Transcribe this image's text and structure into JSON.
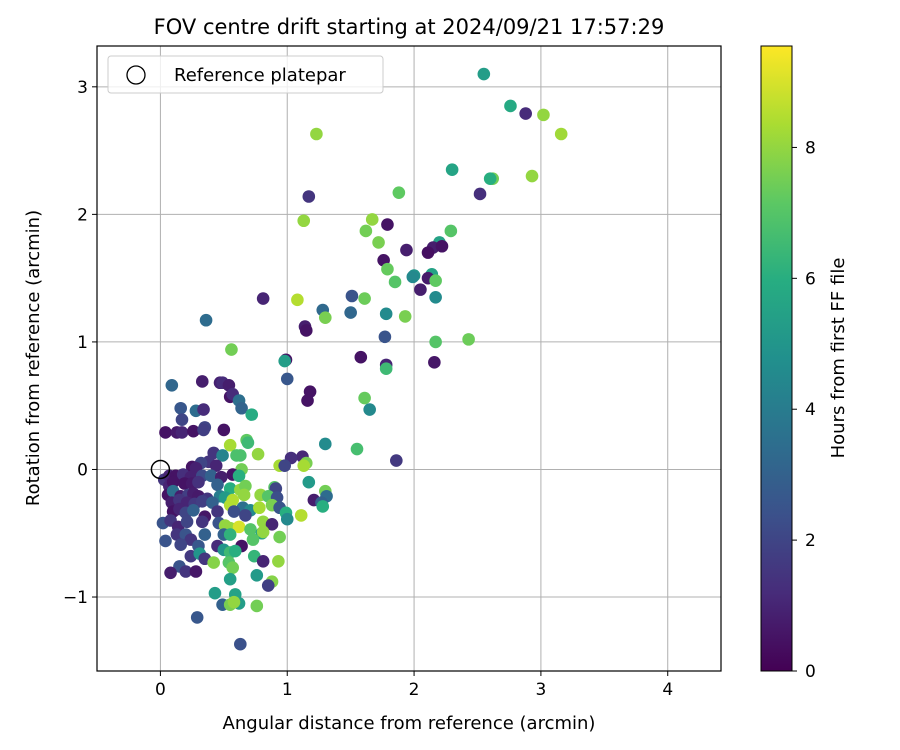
{
  "chart_data": {
    "type": "scatter",
    "title": "FOV centre drift starting at 2024/09/21 17:57:29",
    "xlabel": "Angular distance from reference (arcmin)",
    "ylabel": "Rotation from reference (arcmin)",
    "xlim": [
      -0.5,
      4.42
    ],
    "ylim": [
      -1.58,
      3.32
    ],
    "xticks": [
      0,
      1,
      2,
      3,
      4
    ],
    "yticks": [
      -1,
      0,
      1,
      2,
      3
    ],
    "grid": true,
    "legend": {
      "position": "top-left",
      "entries": [
        "Reference platepar"
      ]
    },
    "reference_point": {
      "x": 0,
      "y": 0
    },
    "colorbar": {
      "label": "Hours from first FF file",
      "ticks": [
        0,
        2,
        4,
        6,
        8
      ],
      "range": [
        0,
        9.55
      ],
      "colormap": "viridis"
    },
    "series": [
      {
        "points": [
          [
            2.55,
            3.1,
            5.3
          ],
          [
            2.76,
            2.85,
            5.8
          ],
          [
            2.88,
            2.79,
            1.2
          ],
          [
            3.02,
            2.78,
            8.0
          ],
          [
            3.16,
            2.63,
            8.2
          ],
          [
            1.23,
            2.63,
            8.0
          ],
          [
            2.3,
            2.35,
            5.6
          ],
          [
            2.62,
            2.28,
            7.5
          ],
          [
            2.6,
            2.28,
            6.0
          ],
          [
            2.93,
            2.3,
            8.0
          ],
          [
            2.52,
            2.16,
            1.3
          ],
          [
            1.17,
            2.14,
            1.5
          ],
          [
            1.88,
            2.17,
            7.2
          ],
          [
            1.13,
            1.95,
            8.0
          ],
          [
            1.67,
            1.96,
            8.0
          ],
          [
            1.79,
            1.92,
            0.5
          ],
          [
            1.62,
            1.87,
            7.5
          ],
          [
            2.29,
            1.87,
            7.0
          ],
          [
            1.72,
            1.78,
            7.6
          ],
          [
            2.2,
            1.78,
            5.5
          ],
          [
            2.15,
            1.74,
            0.8
          ],
          [
            2.22,
            1.75,
            0.5
          ],
          [
            1.94,
            1.72,
            0.8
          ],
          [
            2.11,
            1.7,
            0.4
          ],
          [
            1.76,
            1.64,
            0.5
          ],
          [
            1.79,
            1.57,
            7.3
          ],
          [
            2.0,
            1.52,
            5.0
          ],
          [
            1.99,
            1.51,
            4.5
          ],
          [
            2.14,
            1.53,
            5.5
          ],
          [
            2.11,
            1.5,
            0.7
          ],
          [
            2.17,
            1.48,
            7.2
          ],
          [
            1.85,
            1.47,
            7.0
          ],
          [
            2.05,
            1.41,
            0.8
          ],
          [
            2.17,
            1.35,
            4.6
          ],
          [
            1.61,
            1.34,
            7.4
          ],
          [
            1.08,
            1.33,
            8.5
          ],
          [
            0.81,
            1.34,
            1.0
          ],
          [
            1.51,
            1.36,
            2.5
          ],
          [
            1.28,
            1.25,
            3.3
          ],
          [
            1.5,
            1.23,
            3.2
          ],
          [
            1.78,
            1.22,
            4.6
          ],
          [
            1.3,
            1.19,
            7.6
          ],
          [
            1.93,
            1.2,
            7.6
          ],
          [
            0.36,
            1.17,
            3.4
          ],
          [
            1.14,
            1.12,
            0.8
          ],
          [
            1.15,
            1.09,
            0.5
          ],
          [
            1.77,
            1.04,
            2.5
          ],
          [
            2.17,
            1.0,
            7.0
          ],
          [
            2.43,
            1.02,
            7.4
          ],
          [
            0.56,
            0.94,
            7.5
          ],
          [
            0.99,
            0.86,
            0.5
          ],
          [
            0.98,
            0.85,
            5.3
          ],
          [
            1.58,
            0.88,
            0.5
          ],
          [
            1.78,
            0.82,
            1.0
          ],
          [
            1.78,
            0.79,
            6.5
          ],
          [
            2.16,
            0.84,
            0.6
          ],
          [
            1.0,
            0.71,
            2.6
          ],
          [
            0.09,
            0.66,
            3.2
          ],
          [
            0.33,
            0.69,
            0.8
          ],
          [
            0.47,
            0.68,
            0.9
          ],
          [
            0.49,
            0.68,
            1.2
          ],
          [
            0.54,
            0.66,
            0.8
          ],
          [
            1.18,
            0.61,
            0.5
          ],
          [
            0.55,
            0.57,
            0.5
          ],
          [
            0.57,
            0.59,
            1.2
          ],
          [
            1.16,
            0.54,
            0.5
          ],
          [
            0.62,
            0.54,
            3.5
          ],
          [
            1.61,
            0.56,
            7.3
          ],
          [
            0.64,
            0.48,
            3.1
          ],
          [
            1.65,
            0.47,
            4.5
          ],
          [
            0.16,
            0.48,
            2.6
          ],
          [
            0.28,
            0.46,
            3.4
          ],
          [
            0.34,
            0.47,
            1.2
          ],
          [
            0.72,
            0.43,
            5.9
          ],
          [
            0.17,
            0.39,
            2.0
          ],
          [
            0.04,
            0.29,
            0.5
          ],
          [
            0.13,
            0.29,
            0.7
          ],
          [
            0.17,
            0.29,
            1.0
          ],
          [
            0.26,
            0.3,
            0.5
          ],
          [
            0.35,
            0.33,
            2.0
          ],
          [
            0.34,
            0.31,
            1.8
          ],
          [
            0.5,
            0.31,
            0.5
          ],
          [
            1.3,
            0.2,
            4.6
          ],
          [
            0.55,
            0.19,
            8.3
          ],
          [
            0.68,
            0.23,
            7.2
          ],
          [
            0.69,
            0.21,
            6.5
          ],
          [
            1.55,
            0.16,
            6.7
          ],
          [
            0.63,
            0.11,
            6.8
          ],
          [
            0.77,
            0.12,
            8.0
          ],
          [
            1.12,
            0.1,
            1.1
          ],
          [
            0.42,
            0.13,
            1.5
          ],
          [
            0.6,
            0.11,
            6.8
          ],
          [
            0.49,
            0.11,
            4.3
          ],
          [
            1.03,
            0.09,
            1.3
          ],
          [
            1.15,
            0.05,
            7.6
          ],
          [
            1.13,
            0.03,
            8.3
          ],
          [
            0.94,
            0.03,
            8.3
          ],
          [
            0.98,
            0.03,
            2.0
          ],
          [
            1.86,
            0.07,
            1.6
          ],
          [
            0.38,
            0.06,
            1.5
          ],
          [
            0.32,
            0.05,
            2.0
          ],
          [
            0.64,
            0.0,
            7.5
          ],
          [
            0.25,
            0.02,
            0.5
          ],
          [
            0.28,
            0.01,
            0.9
          ],
          [
            0.44,
            0.03,
            1.0
          ],
          [
            0.57,
            -0.04,
            0.5
          ],
          [
            0.62,
            -0.05,
            6.0
          ],
          [
            0.03,
            -0.08,
            1.5
          ],
          [
            0.07,
            -0.05,
            1.0
          ],
          [
            0.12,
            -0.05,
            0.5
          ],
          [
            0.18,
            -0.04,
            1.3
          ],
          [
            0.24,
            -0.06,
            0.9
          ],
          [
            0.33,
            -0.05,
            2.2
          ],
          [
            0.4,
            -0.05,
            3.0
          ],
          [
            0.48,
            -0.06,
            0.8
          ],
          [
            1.17,
            -0.1,
            5.2
          ],
          [
            0.07,
            -0.13,
            1.0
          ],
          [
            0.1,
            -0.1,
            0.5
          ],
          [
            0.19,
            -0.11,
            0.5
          ],
          [
            0.25,
            -0.11,
            0.7
          ],
          [
            0.3,
            -0.1,
            1.4
          ],
          [
            0.45,
            -0.12,
            3.0
          ],
          [
            0.55,
            -0.15,
            6.0
          ],
          [
            0.63,
            -0.16,
            8.0
          ],
          [
            0.67,
            -0.13,
            7.5
          ],
          [
            0.9,
            -0.14,
            7.0
          ],
          [
            0.91,
            -0.15,
            2.0
          ],
          [
            1.3,
            -0.17,
            7.5
          ],
          [
            1.31,
            -0.21,
            3.4
          ],
          [
            1.21,
            -0.24,
            0.8
          ],
          [
            1.27,
            -0.26,
            3.0
          ],
          [
            0.06,
            -0.2,
            0.5
          ],
          [
            0.1,
            -0.17,
            3.5
          ],
          [
            0.16,
            -0.21,
            0.8
          ],
          [
            0.22,
            -0.2,
            1.8
          ],
          [
            0.26,
            -0.19,
            0.8
          ],
          [
            0.3,
            -0.21,
            0.7
          ],
          [
            0.37,
            -0.23,
            1.5
          ],
          [
            0.47,
            -0.21,
            4.0
          ],
          [
            0.51,
            -0.22,
            5.2
          ],
          [
            0.57,
            -0.24,
            8.5
          ],
          [
            0.66,
            -0.2,
            8.0
          ],
          [
            0.79,
            -0.2,
            8.0
          ],
          [
            0.85,
            -0.21,
            7.0
          ],
          [
            0.92,
            -0.22,
            2.3
          ],
          [
            1.28,
            -0.29,
            6.0
          ],
          [
            0.09,
            -0.26,
            0.8
          ],
          [
            0.15,
            -0.24,
            1.5
          ],
          [
            0.21,
            -0.26,
            1.0
          ],
          [
            0.27,
            -0.27,
            1.6
          ],
          [
            0.33,
            -0.25,
            1.8
          ],
          [
            0.41,
            -0.26,
            3.0
          ],
          [
            0.55,
            -0.28,
            8.5
          ],
          [
            0.65,
            -0.3,
            3.5
          ],
          [
            0.71,
            -0.32,
            4.5
          ],
          [
            0.78,
            -0.3,
            8.3
          ],
          [
            0.88,
            -0.28,
            7.6
          ],
          [
            0.94,
            -0.3,
            2.5
          ],
          [
            1.11,
            -0.36,
            8.5
          ],
          [
            0.1,
            -0.33,
            0.5
          ],
          [
            0.15,
            -0.31,
            1.0
          ],
          [
            0.2,
            -0.34,
            2.0
          ],
          [
            0.26,
            -0.32,
            3.0
          ],
          [
            0.35,
            -0.37,
            0.6
          ],
          [
            0.45,
            -0.33,
            1.5
          ],
          [
            0.58,
            -0.33,
            2.3
          ],
          [
            0.67,
            -0.36,
            2.0
          ],
          [
            0.81,
            -0.41,
            8.0
          ],
          [
            0.99,
            -0.34,
            6.0
          ],
          [
            1.0,
            -0.39,
            4.5
          ],
          [
            0.02,
            -0.42,
            2.5
          ],
          [
            0.08,
            -0.4,
            1.5
          ],
          [
            0.14,
            -0.45,
            1.0
          ],
          [
            0.21,
            -0.41,
            2.0
          ],
          [
            0.33,
            -0.41,
            1.5
          ],
          [
            0.46,
            -0.42,
            2.5
          ],
          [
            0.51,
            -0.44,
            8.0
          ],
          [
            0.55,
            -0.46,
            8.0
          ],
          [
            0.62,
            -0.45,
            9.0
          ],
          [
            0.71,
            -0.47,
            7.0
          ],
          [
            0.8,
            -0.5,
            5.5
          ],
          [
            0.88,
            -0.43,
            1.0
          ],
          [
            0.13,
            -0.51,
            1.5
          ],
          [
            0.2,
            -0.51,
            2.5
          ],
          [
            0.24,
            -0.55,
            1.5
          ],
          [
            0.35,
            -0.51,
            3.0
          ],
          [
            0.5,
            -0.51,
            3.0
          ],
          [
            0.55,
            -0.51,
            6.2
          ],
          [
            0.64,
            -0.6,
            0.5
          ],
          [
            0.73,
            -0.55,
            7.0
          ],
          [
            0.94,
            -0.53,
            7.5
          ],
          [
            0.81,
            -0.49,
            8.0
          ],
          [
            0.04,
            -0.56,
            2.5
          ],
          [
            0.16,
            -0.59,
            2.0
          ],
          [
            0.3,
            -0.6,
            2.6
          ],
          [
            0.45,
            -0.6,
            1.2
          ],
          [
            0.5,
            -0.63,
            5.0
          ],
          [
            0.55,
            -0.65,
            6.5
          ],
          [
            0.59,
            -0.64,
            6.0
          ],
          [
            0.74,
            -0.68,
            6.3
          ],
          [
            0.93,
            -0.72,
            8.0
          ],
          [
            0.24,
            -0.68,
            1.6
          ],
          [
            0.31,
            -0.66,
            5.0
          ],
          [
            0.35,
            -0.7,
            1.5
          ],
          [
            0.42,
            -0.73,
            7.8
          ],
          [
            0.54,
            -0.73,
            7.0
          ],
          [
            0.81,
            -0.72,
            1.0
          ],
          [
            0.15,
            -0.76,
            2.5
          ],
          [
            0.08,
            -0.81,
            0.8
          ],
          [
            0.2,
            -0.8,
            1.5
          ],
          [
            0.28,
            -0.8,
            0.6
          ],
          [
            0.57,
            -0.77,
            7.5
          ],
          [
            0.76,
            -0.83,
            5.2
          ],
          [
            0.55,
            -0.86,
            5.4
          ],
          [
            0.88,
            -0.88,
            7.8
          ],
          [
            0.85,
            -0.91,
            1.8
          ],
          [
            0.43,
            -0.97,
            5.3
          ],
          [
            0.59,
            -0.98,
            5.5
          ],
          [
            0.49,
            -1.06,
            3.0
          ],
          [
            0.55,
            -1.06,
            7.6
          ],
          [
            0.62,
            -1.05,
            5.3
          ],
          [
            0.58,
            -1.04,
            8.0
          ],
          [
            0.76,
            -1.07,
            7.5
          ],
          [
            0.29,
            -1.16,
            2.6
          ],
          [
            0.63,
            -1.37,
            2.4
          ]
        ]
      }
    ]
  }
}
